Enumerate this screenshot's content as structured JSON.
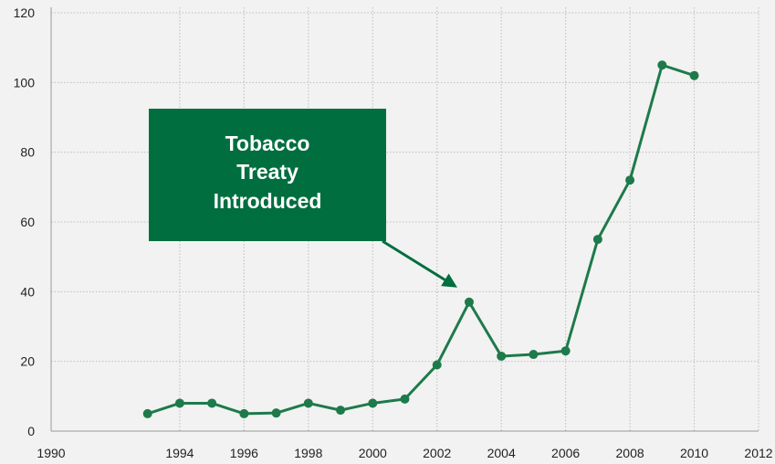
{
  "chart_data": {
    "type": "line",
    "title": "",
    "xlabel": "",
    "ylabel": "",
    "x": [
      1993,
      1994,
      1995,
      1996,
      1997,
      1998,
      1999,
      2000,
      2001,
      2002,
      2003,
      2004,
      2005,
      2006,
      2007,
      2008,
      2009,
      2010
    ],
    "series": [
      {
        "values": [
          5,
          8,
          8,
          5,
          5.2,
          8,
          6,
          8,
          9.2,
          19,
          37,
          21.5,
          22,
          23,
          55,
          72,
          105,
          102
        ]
      }
    ],
    "xlim": [
      1990,
      2012
    ],
    "ylim": [
      0,
      120
    ],
    "xticks": [
      1990,
      1994,
      1996,
      1998,
      2000,
      2002,
      2004,
      2006,
      2008,
      2010,
      2012
    ],
    "yticks": [
      0,
      20,
      40,
      60,
      80,
      100,
      120
    ],
    "grid": true,
    "legend": "none",
    "annotation": {
      "lines": [
        "Tobacco",
        "Treaty",
        "Introduced"
      ],
      "points_to_x": 2003
    },
    "colors": {
      "line": "#1e7a4b",
      "marker": "#1e7a4b",
      "annotation_box": "#006e3f",
      "annotation_text": "#ffffff",
      "background": "#f2f2f2",
      "grid": "#bdbdbd"
    }
  }
}
